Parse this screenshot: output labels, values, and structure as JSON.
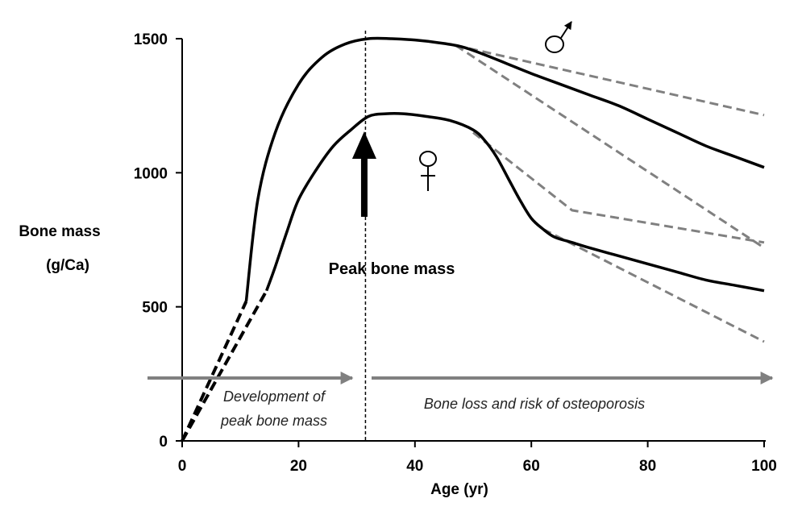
{
  "chart_data": {
    "type": "line",
    "title": "",
    "xlabel": "Age (yr)",
    "ylabel": [
      "Bone mass",
      "(g/Ca)"
    ],
    "xlim": [
      0,
      100
    ],
    "ylim": [
      0,
      1500
    ],
    "x_ticks": [
      0,
      20,
      40,
      60,
      80,
      100
    ],
    "y_ticks": [
      0,
      500,
      1000,
      1500
    ],
    "grid": false,
    "colors": {
      "main": "#000000",
      "scenario": "#808080",
      "phase_arrow": "#808080"
    },
    "series": [
      {
        "symbol": "♂",
        "style": "solid",
        "color": "#000000",
        "x": [
          11,
          13,
          16,
          20,
          24,
          28,
          32,
          36,
          40,
          44,
          48,
          52,
          56,
          60,
          65,
          70,
          75,
          80,
          85,
          90,
          95,
          100
        ],
        "y": [
          520,
          900,
          1150,
          1330,
          1430,
          1480,
          1500,
          1500,
          1495,
          1485,
          1470,
          1440,
          1405,
          1370,
          1330,
          1290,
          1250,
          1200,
          1150,
          1100,
          1060,
          1020
        ]
      },
      {
        "symbol": "♂",
        "style": "dashed",
        "color": "#000000",
        "x": [
          0,
          11
        ],
        "y": [
          0,
          520
        ]
      },
      {
        "symbol": "♀",
        "style": "solid",
        "color": "#000000",
        "x": [
          14.5,
          16,
          18,
          20,
          23,
          26,
          29,
          32,
          35,
          38,
          42,
          46,
          50,
          52,
          54,
          56,
          58,
          60,
          62,
          64,
          67,
          70,
          75,
          80,
          85,
          90,
          95,
          100
        ],
        "y": [
          560,
          650,
          780,
          900,
          1010,
          1100,
          1160,
          1210,
          1220,
          1220,
          1210,
          1195,
          1160,
          1120,
          1060,
          980,
          900,
          830,
          790,
          760,
          740,
          720,
          690,
          660,
          630,
          600,
          580,
          560
        ]
      },
      {
        "symbol": "♀",
        "style": "dashed",
        "color": "#000000",
        "x": [
          0,
          14.5
        ],
        "y": [
          0,
          560
        ]
      }
    ],
    "scenario_lines": [
      {
        "style": "dashed",
        "color": "#808080",
        "x": [
          47,
          100
        ],
        "y": [
          1475,
          1215
        ]
      },
      {
        "style": "dashed",
        "color": "#808080",
        "x": [
          47,
          100
        ],
        "y": [
          1475,
          720
        ]
      },
      {
        "style": "dashed",
        "color": "#808080",
        "x": [
          50,
          67,
          100
        ],
        "y": [
          1150,
          860,
          740
        ]
      },
      {
        "style": "dashed",
        "color": "#808080",
        "x": [
          62,
          100
        ],
        "y": [
          790,
          370
        ]
      }
    ],
    "peak_marker": {
      "x": 31.5,
      "label": "Peak bone mass"
    },
    "phases": [
      {
        "label": [
          "Development of",
          "peak bone mass"
        ],
        "x_from": -6,
        "x_to": 30
      },
      {
        "label": [
          "Bone loss and risk of osteoporosis"
        ],
        "x_from": 32,
        "x_to": 101
      }
    ],
    "symbols": [
      {
        "glyph": "♂",
        "x": 65,
        "y": 1520
      },
      {
        "glyph": "♀",
        "x": 42.5,
        "y": 1040
      }
    ]
  }
}
